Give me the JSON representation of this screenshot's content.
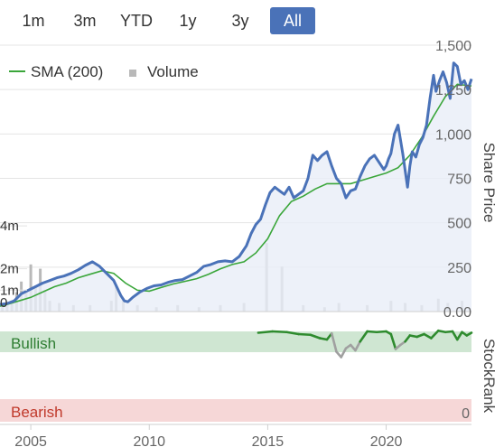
{
  "range_buttons": [
    {
      "label": "1m",
      "active": false
    },
    {
      "label": "3m",
      "active": false
    },
    {
      "label": "YTD",
      "active": false
    },
    {
      "label": "1y",
      "active": false
    },
    {
      "label": "3y",
      "active": false
    },
    {
      "label": "All",
      "active": true
    }
  ],
  "colors": {
    "price": "#4a72b8",
    "sma": "#3aa63a",
    "volume": "#b9b9b9",
    "bullish_band": "#cfe6d2",
    "bearish_band": "#f6d7d7",
    "rank_green": "#2e8b2e",
    "rank_gray": "#a0a0a0",
    "area_fill": "#e9eef8"
  },
  "chart_data": {
    "type": "line",
    "legend": [
      {
        "name": "SMA (200)",
        "symbol": "line"
      },
      {
        "name": "Volume",
        "symbol": "square"
      }
    ],
    "legend_position": "top-left",
    "price_axis": {
      "title": "Share Price",
      "ticks": [
        {
          "value": 0,
          "label": "0.00"
        },
        {
          "value": 250,
          "label": "250"
        },
        {
          "value": 500,
          "label": "500"
        },
        {
          "value": 750,
          "label": "750"
        },
        {
          "value": 1000,
          "label": "1,000"
        },
        {
          "value": 1250,
          "label": "1,250"
        },
        {
          "value": 1500,
          "label": "1,500"
        }
      ],
      "range": [
        0,
        1500
      ]
    },
    "volume_axis": {
      "ticks": [
        {
          "value": 1,
          "label": "1m"
        },
        {
          "value": 2,
          "label": "2m"
        },
        {
          "value": 4,
          "label": "4m"
        }
      ],
      "zero_label": "0",
      "range": [
        0,
        8
      ]
    },
    "x_axis": {
      "ticks": [
        {
          "value": 2005,
          "label": "2005"
        },
        {
          "value": 2010,
          "label": "2010"
        },
        {
          "value": 2015,
          "label": "2015"
        },
        {
          "value": 2020,
          "label": "2020"
        }
      ],
      "range": [
        2003.7,
        2023.6
      ]
    },
    "series": [
      {
        "name": "Price",
        "x": [
          2003.7,
          2004.0,
          2004.3,
          2004.6,
          2004.9,
          2005.2,
          2005.5,
          2005.8,
          2006.1,
          2006.4,
          2006.7,
          2007.0,
          2007.3,
          2007.6,
          2007.9,
          2008.2,
          2008.5,
          2008.8,
          2008.95,
          2009.1,
          2009.3,
          2009.6,
          2009.9,
          2010.2,
          2010.5,
          2010.8,
          2011.1,
          2011.4,
          2011.7,
          2012.0,
          2012.3,
          2012.6,
          2012.9,
          2013.2,
          2013.5,
          2013.8,
          2014.1,
          2014.3,
          2014.5,
          2014.7,
          2014.9,
          2015.1,
          2015.3,
          2015.5,
          2015.7,
          2015.9,
          2016.1,
          2016.3,
          2016.5,
          2016.7,
          2016.9,
          2017.1,
          2017.3,
          2017.5,
          2017.7,
          2017.9,
          2018.1,
          2018.3,
          2018.5,
          2018.7,
          2018.9,
          2019.1,
          2019.3,
          2019.5,
          2019.7,
          2019.9,
          2020.0,
          2020.1,
          2020.2,
          2020.35,
          2020.5,
          2020.7,
          2020.9,
          2021.0,
          2021.1,
          2021.25,
          2021.4,
          2021.55,
          2021.7,
          2021.85,
          2022.0,
          2022.1,
          2022.25,
          2022.4,
          2022.55,
          2022.7,
          2022.85,
          2023.0,
          2023.15,
          2023.3,
          2023.45,
          2023.6
        ],
        "y": [
          40,
          45,
          60,
          100,
          120,
          140,
          160,
          175,
          190,
          200,
          215,
          235,
          260,
          280,
          255,
          215,
          175,
          90,
          60,
          55,
          80,
          110,
          130,
          145,
          150,
          165,
          175,
          180,
          200,
          220,
          255,
          265,
          280,
          285,
          280,
          310,
          370,
          440,
          490,
          520,
          600,
          670,
          700,
          680,
          660,
          700,
          640,
          660,
          680,
          750,
          880,
          850,
          880,
          900,
          820,
          750,
          720,
          640,
          680,
          690,
          760,
          820,
          860,
          880,
          840,
          800,
          820,
          860,
          890,
          1000,
          1050,
          890,
          700,
          820,
          900,
          870,
          940,
          980,
          1050,
          1200,
          1330,
          1240,
          1300,
          1350,
          1290,
          1200,
          1400,
          1380,
          1280,
          1300,
          1250,
          1310
        ]
      },
      {
        "name": "SMA (200)",
        "x": [
          2003.7,
          2004.0,
          2004.5,
          2005.0,
          2005.5,
          2006.0,
          2006.5,
          2007.0,
          2007.5,
          2008.0,
          2008.5,
          2009.0,
          2009.5,
          2010.0,
          2010.5,
          2011.0,
          2011.5,
          2012.0,
          2012.5,
          2013.0,
          2013.5,
          2014.0,
          2014.5,
          2015.0,
          2015.5,
          2016.0,
          2016.5,
          2017.0,
          2017.5,
          2018.0,
          2018.5,
          2019.0,
          2019.5,
          2020.0,
          2020.5,
          2021.0,
          2021.5,
          2022.0,
          2022.5,
          2023.0,
          2023.6
        ],
        "y": [
          30,
          40,
          60,
          80,
          110,
          140,
          160,
          190,
          210,
          230,
          215,
          160,
          120,
          115,
          135,
          155,
          170,
          185,
          210,
          240,
          265,
          280,
          330,
          410,
          540,
          620,
          650,
          690,
          720,
          720,
          720,
          740,
          760,
          780,
          810,
          880,
          980,
          1100,
          1210,
          1280,
          1270
        ]
      },
      {
        "name": "Volume",
        "x": [
          2003.8,
          2004.0,
          2004.2,
          2004.4,
          2004.6,
          2004.8,
          2005.0,
          2005.2,
          2005.4,
          2005.6,
          2005.8,
          2006.2,
          2006.8,
          2007.5,
          2008.4,
          2008.6,
          2008.9,
          2009.5,
          2010.3,
          2011.2,
          2012.1,
          2013.0,
          2014.0,
          2014.95,
          2015.6,
          2016.5,
          2017.4,
          2018.0,
          2019.2,
          2020.2,
          2020.8,
          2021.5,
          2022.2,
          2022.6,
          2023.2
        ],
        "y": [
          0.3,
          0.4,
          0.5,
          0.9,
          1.4,
          1.0,
          2.2,
          1.2,
          2.0,
          1.0,
          0.5,
          0.4,
          0.3,
          0.3,
          0.5,
          1.2,
          0.6,
          0.3,
          0.2,
          0.3,
          0.2,
          0.3,
          0.4,
          3.2,
          2.1,
          0.3,
          0.2,
          0.4,
          0.3,
          0.5,
          0.4,
          0.3,
          0.6,
          0.4,
          0.5
        ]
      }
    ],
    "stockrank": {
      "title": "StockRank",
      "bullish_label": "Bullish",
      "bearish_label": "Bearish",
      "zero_label": "0",
      "x": [
        2014.6,
        2015.2,
        2015.8,
        2016.3,
        2016.8,
        2017.2,
        2017.5,
        2017.7,
        2017.9,
        2018.1,
        2018.3,
        2018.5,
        2018.7,
        2018.9,
        2019.2,
        2019.6,
        2020.0,
        2020.2,
        2020.4,
        2020.6,
        2020.8,
        2021.0,
        2021.3,
        2021.6,
        2021.9,
        2022.2,
        2022.5,
        2022.8,
        2023.0,
        2023.2,
        2023.4,
        2023.6
      ],
      "y": [
        98,
        100,
        99,
        96,
        95,
        90,
        88,
        97,
        70,
        62,
        75,
        80,
        72,
        85,
        100,
        99,
        100,
        96,
        74,
        80,
        85,
        94,
        92,
        96,
        90,
        101,
        99,
        100,
        88,
        99,
        94,
        98
      ]
    }
  }
}
